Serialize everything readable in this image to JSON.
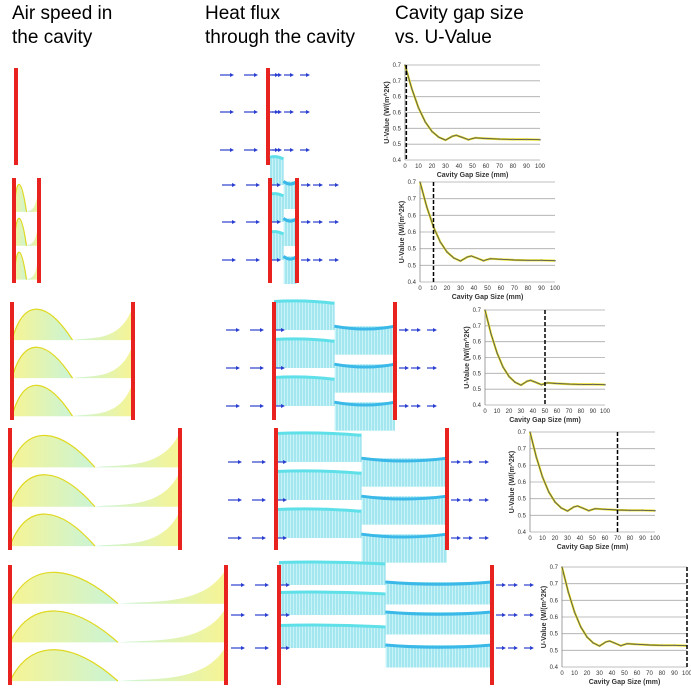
{
  "headers": {
    "air_speed": [
      "Air speed in",
      "the cavity"
    ],
    "heat_flux": [
      "Heat flux",
      "through the cavity"
    ],
    "u_value": [
      "Cavity gap size",
      "vs. U-Value"
    ]
  },
  "colors": {
    "wall": "#e8231f",
    "arrow": "#2a3fcf",
    "curve": "#555555",
    "curve_highlight": "#e8e020",
    "marker": "#000000",
    "air_profile": "#f2ef6a",
    "heat_band": "#5fe0e8"
  },
  "chart_data": [
    {
      "type": "line",
      "xlabel": "Cavity Gap Size (mm)",
      "ylabel": "U-Value (W/(m^2K)",
      "xlim": [
        0,
        100
      ],
      "ylim": [
        0.4,
        0.7
      ],
      "xticks": [
        "0",
        "10",
        "20",
        "30",
        "40",
        "50",
        "60",
        "70",
        "80",
        "90",
        "100"
      ],
      "yticks": [
        "0.7",
        "0.7",
        "0.6",
        "0.6",
        "0.5",
        "0.5",
        "0.4"
      ],
      "grid": true,
      "marker_x": 1,
      "x": [
        0,
        5,
        10,
        15,
        20,
        25,
        30,
        35,
        38,
        42,
        47,
        52,
        60,
        70,
        80,
        90,
        100
      ],
      "y": [
        0.7,
        0.625,
        0.565,
        0.52,
        0.49,
        0.472,
        0.463,
        0.475,
        0.478,
        0.472,
        0.464,
        0.47,
        0.468,
        0.466,
        0.465,
        0.465,
        0.464
      ]
    },
    {
      "type": "line",
      "xlabel": "Cavity Gap Size (mm)",
      "ylabel": "U-Value (W/(m^2K)",
      "xlim": [
        0,
        100
      ],
      "ylim": [
        0.4,
        0.7
      ],
      "xticks": [
        "0",
        "10",
        "20",
        "30",
        "40",
        "50",
        "60",
        "70",
        "80",
        "90",
        "100"
      ],
      "yticks": [
        "0.7",
        "0.7",
        "0.6",
        "0.6",
        "0.5",
        "0.5",
        "0.4"
      ],
      "grid": true,
      "marker_x": 10,
      "x": [
        0,
        5,
        10,
        15,
        20,
        25,
        30,
        35,
        38,
        42,
        47,
        52,
        60,
        70,
        80,
        90,
        100
      ],
      "y": [
        0.7,
        0.625,
        0.565,
        0.52,
        0.49,
        0.472,
        0.463,
        0.475,
        0.478,
        0.472,
        0.464,
        0.47,
        0.468,
        0.466,
        0.465,
        0.465,
        0.464
      ]
    },
    {
      "type": "line",
      "xlabel": "Cavity Gap Size (mm)",
      "ylabel": "U-Value (W/(m^2K)",
      "xlim": [
        0,
        100
      ],
      "ylim": [
        0.4,
        0.7
      ],
      "xticks": [
        "0",
        "10",
        "20",
        "30",
        "40",
        "50",
        "60",
        "70",
        "80",
        "90",
        "100"
      ],
      "yticks": [
        "0.7",
        "0.7",
        "0.6",
        "0.6",
        "0.5",
        "0.5",
        "0.4"
      ],
      "grid": true,
      "marker_x": 50,
      "x": [
        0,
        5,
        10,
        15,
        20,
        25,
        30,
        35,
        38,
        42,
        47,
        52,
        60,
        70,
        80,
        90,
        100
      ],
      "y": [
        0.7,
        0.625,
        0.565,
        0.52,
        0.49,
        0.472,
        0.463,
        0.475,
        0.478,
        0.472,
        0.464,
        0.47,
        0.468,
        0.466,
        0.465,
        0.465,
        0.464
      ]
    },
    {
      "type": "line",
      "xlabel": "Cavity Gap Size (mm)",
      "ylabel": "U-Value (W/(m^2K)",
      "xlim": [
        0,
        100
      ],
      "ylim": [
        0.4,
        0.7
      ],
      "xticks": [
        "0",
        "10",
        "20",
        "30",
        "40",
        "50",
        "60",
        "70",
        "80",
        "90",
        "100"
      ],
      "yticks": [
        "0.7",
        "0.7",
        "0.6",
        "0.6",
        "0.5",
        "0.5",
        "0.4"
      ],
      "grid": true,
      "marker_x": 70,
      "x": [
        0,
        5,
        10,
        15,
        20,
        25,
        30,
        35,
        38,
        42,
        47,
        52,
        60,
        70,
        80,
        90,
        100
      ],
      "y": [
        0.7,
        0.625,
        0.565,
        0.52,
        0.49,
        0.472,
        0.463,
        0.475,
        0.478,
        0.472,
        0.464,
        0.47,
        0.468,
        0.466,
        0.465,
        0.465,
        0.464
      ]
    },
    {
      "type": "line",
      "xlabel": "Cavity Gap Size (mm)",
      "ylabel": "U-Value (W/(m^2K)",
      "xlim": [
        0,
        100
      ],
      "ylim": [
        0.4,
        0.7
      ],
      "xticks": [
        "0",
        "10",
        "20",
        "30",
        "40",
        "50",
        "60",
        "70",
        "80",
        "90",
        "100"
      ],
      "yticks": [
        "0.7",
        "0.7",
        "0.6",
        "0.6",
        "0.5",
        "0.5",
        "0.4"
      ],
      "grid": true,
      "marker_x": 100,
      "x": [
        0,
        5,
        10,
        15,
        20,
        25,
        30,
        35,
        38,
        42,
        47,
        52,
        60,
        70,
        80,
        90,
        100
      ],
      "y": [
        0.7,
        0.625,
        0.565,
        0.52,
        0.49,
        0.472,
        0.463,
        0.475,
        0.478,
        0.472,
        0.464,
        0.47,
        0.468,
        0.466,
        0.465,
        0.465,
        0.464
      ]
    }
  ]
}
